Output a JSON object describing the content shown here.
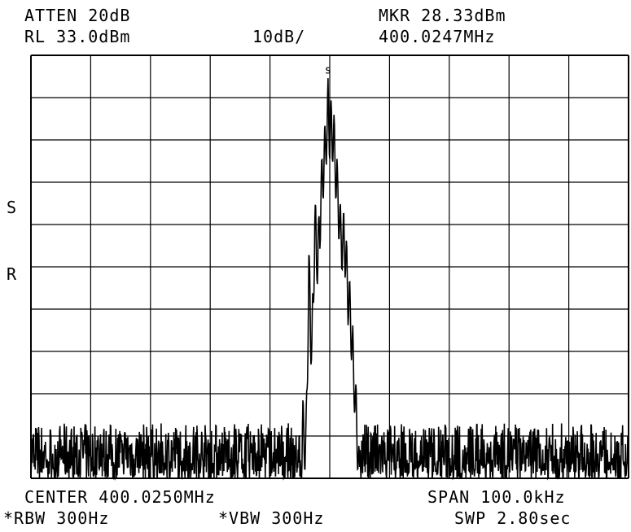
{
  "header": {
    "atten": "ATTEN 20dB",
    "ref_level": "RL 33.0dBm",
    "scale": "10dB/",
    "marker_level": "MKR 28.33dBm",
    "marker_freq": "400.0247MHz"
  },
  "side": {
    "s_label": "S",
    "r_label": "R"
  },
  "marker_symbol": "s",
  "footer": {
    "center": "CENTER 400.0250MHz",
    "span": "SPAN 100.0kHz",
    "rbw": "*RBW 300Hz",
    "vbw": "*VBW 300Hz",
    "sweep": "SWP 2.80sec"
  },
  "colors": {
    "trace": "#000000",
    "grid": "#000000",
    "background": "#ffffff"
  },
  "chart_data": {
    "type": "line",
    "xlabel": "",
    "ylabel": "",
    "x_range_MHz": [
      399.975,
      400.075
    ],
    "ylim_dBm": [
      -67.0,
      33.0
    ],
    "grid": true,
    "divisions": {
      "x": 10,
      "y": 10
    },
    "noise_floor_dBm": -62,
    "series": [
      {
        "x": [
          400.02,
          400.0205,
          400.021,
          400.0215,
          400.022,
          400.0225,
          400.023,
          400.0235,
          400.024,
          400.0243,
          400.0247,
          400.025,
          400.0253,
          400.0257,
          400.026,
          400.0265,
          400.027,
          400.0275,
          400.028,
          400.0285,
          400.029,
          400.0295,
          400.03
        ],
        "y": [
          -62,
          -46,
          -54,
          -10,
          -30,
          0,
          -8,
          6,
          16,
          18,
          28.33,
          22,
          24,
          20,
          14,
          4,
          -4,
          -2,
          -14,
          -22,
          -34,
          -46,
          -62
        ]
      }
    ]
  }
}
